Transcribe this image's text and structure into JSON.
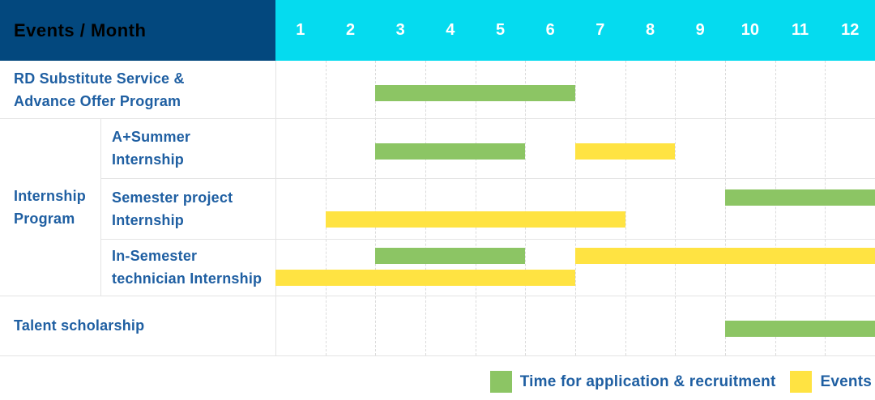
{
  "header": {
    "title": "Events / Month",
    "months": [
      "1",
      "2",
      "3",
      "4",
      "5",
      "6",
      "7",
      "8",
      "9",
      "10",
      "11",
      "12"
    ]
  },
  "colors": {
    "application_green": "#8CC564",
    "event_yellow": "#FFE342",
    "header_navy": "#03487E",
    "header_cyan": "#05DBEF",
    "label_blue": "#1F5FA2",
    "grid_gray": "#E4E4E4"
  },
  "chart_data": {
    "type": "gantt",
    "title": "Events / Month",
    "x_axis": {
      "label": "Month",
      "ticks": [
        1,
        2,
        3,
        4,
        5,
        6,
        7,
        8,
        9,
        10,
        11,
        12
      ],
      "range": [
        1,
        12
      ],
      "grid": "dashed"
    },
    "legend_position": "bottom-right",
    "legend": [
      {
        "type": "application",
        "label": "Time for application & recruitment",
        "color": "#8CC564"
      },
      {
        "type": "event",
        "label": "Events",
        "color": "#FFE342"
      }
    ],
    "group_label": "Internship\nProgram",
    "rows": [
      {
        "group": "",
        "label": "RD Substitute Service &\nAdvance Offer Program",
        "lanes": 1,
        "bars": [
          {
            "type": "application",
            "start": 3,
            "end": 6,
            "lane": 0
          }
        ]
      },
      {
        "group": "Internship Program",
        "label": "A+Summer\nInternship",
        "lanes": 1,
        "bars": [
          {
            "type": "application",
            "start": 3,
            "end": 5,
            "lane": 0
          },
          {
            "type": "event",
            "start": 7,
            "end": 8,
            "lane": 0
          }
        ]
      },
      {
        "group": "Internship Program",
        "label": "Semester project\nInternship",
        "lanes": 2,
        "bars": [
          {
            "type": "application",
            "start": 10,
            "end": 12,
            "lane": 0
          },
          {
            "type": "event",
            "start": 2,
            "end": 7,
            "lane": 1
          }
        ]
      },
      {
        "group": "Internship Program",
        "label": "In-Semester\ntechnician Internship",
        "lanes": 2,
        "bars": [
          {
            "type": "application",
            "start": 3,
            "end": 5,
            "lane": 0
          },
          {
            "type": "event",
            "start": 7,
            "end": 12,
            "lane": 0
          },
          {
            "type": "event",
            "start": 1,
            "end": 6,
            "lane": 1
          }
        ]
      },
      {
        "group": "",
        "label": "Talent scholarship",
        "lanes": 1,
        "bars": [
          {
            "type": "application",
            "start": 10,
            "end": 12,
            "lane": 0
          }
        ]
      }
    ]
  }
}
